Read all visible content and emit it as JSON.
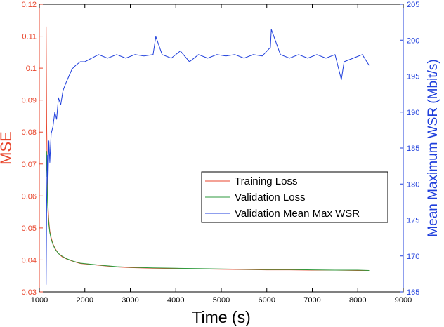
{
  "colors": {
    "left_axis": "#e8452c",
    "right_axis": "#1f3fdc",
    "training": "#e8452c",
    "validation_loss": "#2e9a3c",
    "validation_wsr": "#1f3fdc",
    "frame": "#000000"
  },
  "chart_data": {
    "type": "line",
    "title": "",
    "xlabel": "Time (s)",
    "ylabel_left": "MSE",
    "ylabel_right": "Mean Maximum WSR (Mbit/s)",
    "xlim": [
      1000,
      9000
    ],
    "ylim_left": [
      0.03,
      0.12
    ],
    "ylim_right": [
      165,
      205
    ],
    "x_ticks": [
      "1000",
      "2000",
      "3000",
      "4000",
      "5000",
      "6000",
      "7000",
      "8000",
      "9000"
    ],
    "y_left_ticks": [
      "0.03",
      "0.04",
      "0.05",
      "0.06",
      "0.07",
      "0.08",
      "0.09",
      "0.1",
      "0.11",
      "0.12"
    ],
    "y_right_ticks": [
      "165",
      "170",
      "175",
      "180",
      "185",
      "190",
      "195",
      "200",
      "205"
    ],
    "legend_position": "center-right",
    "grid": false,
    "series": [
      {
        "name": "Training Loss",
        "axis": "left",
        "x": [
          1150,
          1160,
          1170,
          1180,
          1195,
          1210,
          1230,
          1260,
          1300,
          1350,
          1420,
          1500,
          1600,
          1750,
          1900,
          2100,
          2400,
          2700,
          3000,
          3500,
          4000,
          4500,
          5000,
          5500,
          6000,
          6500,
          7000,
          7500,
          8000,
          8250
        ],
        "y": [
          0.113,
          0.083,
          0.072,
          0.062,
          0.056,
          0.052,
          0.049,
          0.047,
          0.045,
          0.0435,
          0.042,
          0.041,
          0.0403,
          0.0395,
          0.0389,
          0.0386,
          0.0382,
          0.0378,
          0.0376,
          0.0374,
          0.0373,
          0.0372,
          0.0371,
          0.037,
          0.0369,
          0.0369,
          0.0368,
          0.0368,
          0.0367,
          0.0367
        ]
      },
      {
        "name": "Validation Loss",
        "axis": "left",
        "x": [
          1150,
          1160,
          1170,
          1180,
          1195,
          1210,
          1230,
          1260,
          1300,
          1350,
          1420,
          1500,
          1600,
          1750,
          1900,
          2100,
          2400,
          2700,
          3000,
          3500,
          4000,
          4500,
          5000,
          5500,
          6000,
          6500,
          7000,
          7500,
          8000,
          8250
        ],
        "y": [
          0.066,
          0.074,
          0.067,
          0.058,
          0.054,
          0.051,
          0.0485,
          0.0465,
          0.0448,
          0.0433,
          0.042,
          0.0412,
          0.0404,
          0.0396,
          0.039,
          0.0387,
          0.0383,
          0.0379,
          0.0377,
          0.0375,
          0.0374,
          0.0373,
          0.0372,
          0.0371,
          0.037,
          0.037,
          0.0369,
          0.0368,
          0.0368,
          0.0367
        ]
      },
      {
        "name": "Validation Mean Max WSR",
        "axis": "right",
        "x": [
          1150,
          1160,
          1175,
          1190,
          1210,
          1230,
          1260,
          1300,
          1340,
          1380,
          1420,
          1470,
          1520,
          1580,
          1650,
          1720,
          1800,
          1900,
          2000,
          2150,
          2300,
          2500,
          2700,
          2900,
          3100,
          3300,
          3500,
          3560,
          3700,
          3900,
          4100,
          4300,
          4500,
          4700,
          4900,
          5100,
          5300,
          5500,
          5700,
          5900,
          6080,
          6100,
          6300,
          6500,
          6700,
          6900,
          7100,
          7300,
          7500,
          7640,
          7700,
          7900,
          8100,
          8250
        ],
        "y": [
          166,
          177,
          184,
          180,
          186,
          183,
          187,
          188,
          190,
          189,
          192,
          191,
          193,
          194,
          195,
          196,
          196.5,
          197,
          197,
          197.5,
          198,
          197.5,
          198,
          197.5,
          198,
          197.8,
          198,
          200.5,
          198,
          197.5,
          198.5,
          197,
          198,
          197.5,
          198,
          197.8,
          198,
          197.5,
          198,
          197.8,
          199,
          201.5,
          198,
          197.5,
          198,
          197.5,
          198,
          197.5,
          198,
          194.5,
          197,
          197.5,
          198,
          196.5
        ]
      }
    ]
  }
}
